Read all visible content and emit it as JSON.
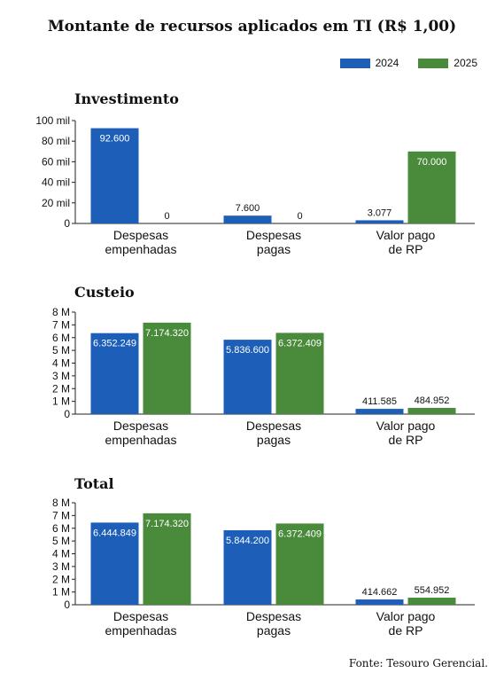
{
  "title": "Montante de recursos aplicados em TI (R$ 1,00)",
  "colors": {
    "2024": "#1d5fb8",
    "2025": "#4a8b3b"
  },
  "legend": [
    {
      "label": "2024",
      "color": "#1d5fb8"
    },
    {
      "label": "2025",
      "color": "#4a8b3b"
    }
  ],
  "source": "Fonte: Tesouro Gerencial.",
  "chart_data": [
    {
      "type": "bar",
      "title": "Investimento",
      "categories": [
        [
          "Despesas",
          "empenhadas"
        ],
        [
          "Despesas",
          "pagas"
        ],
        [
          "Valor pago",
          "de RP"
        ]
      ],
      "ylim": [
        0,
        100000
      ],
      "ticks": [
        0,
        20000,
        40000,
        60000,
        80000,
        100000
      ],
      "tick_labels": [
        "0",
        "20 mil",
        "40 mil",
        "60 mil",
        "80 mil",
        "100 mil"
      ],
      "series": [
        {
          "name": "2024",
          "values": [
            92600,
            7600,
            3077
          ],
          "labels": [
            "92.600",
            "7.600",
            "3.077"
          ]
        },
        {
          "name": "2025",
          "values": [
            0,
            0,
            70000
          ],
          "labels": [
            "0",
            "0",
            "70.000"
          ]
        }
      ]
    },
    {
      "type": "bar",
      "title": "Custeio",
      "categories": [
        [
          "Despesas",
          "empenhadas"
        ],
        [
          "Despesas",
          "pagas"
        ],
        [
          "Valor pago",
          "de RP"
        ]
      ],
      "ylim": [
        0,
        8000000
      ],
      "ticks": [
        0,
        1000000,
        2000000,
        3000000,
        4000000,
        5000000,
        6000000,
        7000000,
        8000000
      ],
      "tick_labels": [
        "0",
        "1 M",
        "2 M",
        "3 M",
        "4 M",
        "5 M",
        "6 M",
        "7 M",
        "8 M"
      ],
      "series": [
        {
          "name": "2024",
          "values": [
            6352249,
            5836600,
            411585
          ],
          "labels": [
            "6.352.249",
            "5.836.600",
            "411.585"
          ]
        },
        {
          "name": "2025",
          "values": [
            7174320,
            6372409,
            484952
          ],
          "labels": [
            "7.174.320",
            "6.372.409",
            "484.952"
          ]
        }
      ]
    },
    {
      "type": "bar",
      "title": "Total",
      "categories": [
        [
          "Despesas",
          "empenhadas"
        ],
        [
          "Despesas",
          "pagas"
        ],
        [
          "Valor pago",
          "de RP"
        ]
      ],
      "ylim": [
        0,
        8000000
      ],
      "ticks": [
        0,
        1000000,
        2000000,
        3000000,
        4000000,
        5000000,
        6000000,
        7000000,
        8000000
      ],
      "tick_labels": [
        "0",
        "1 M",
        "2 M",
        "3 M",
        "4 M",
        "5 M",
        "6 M",
        "7 M",
        "8 M"
      ],
      "series": [
        {
          "name": "2024",
          "values": [
            6444849,
            5844200,
            414662
          ],
          "labels": [
            "6.444.849",
            "5.844.200",
            "414.662"
          ]
        },
        {
          "name": "2025",
          "values": [
            7174320,
            6372409,
            554952
          ],
          "labels": [
            "7.174.320",
            "6.372.409",
            "554.952"
          ]
        }
      ]
    }
  ]
}
